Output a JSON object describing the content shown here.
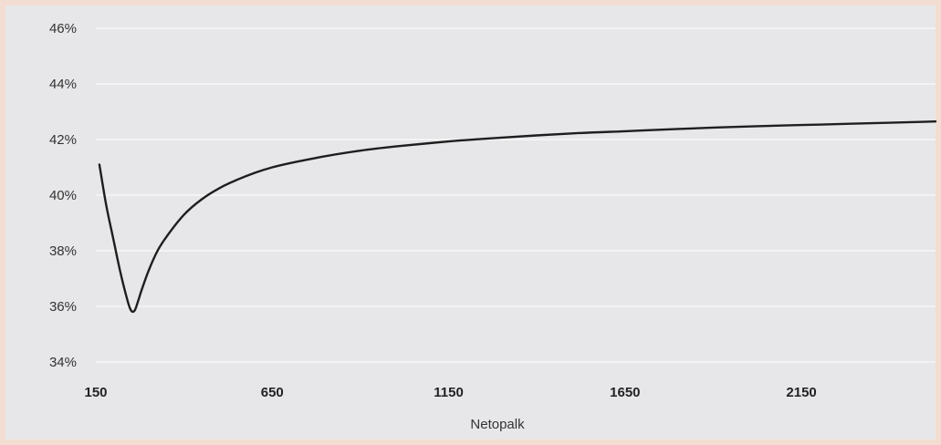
{
  "chart_data": {
    "type": "line",
    "title": "",
    "xlabel": "Netopalk",
    "ylabel": "",
    "x_ticks": [
      "150",
      "650",
      "1150",
      "1650",
      "2150"
    ],
    "y_ticks": [
      "34%",
      "36%",
      "38%",
      "40%",
      "42%",
      "44%",
      "46%"
    ],
    "xlim": [
      150,
      2530
    ],
    "ylim": [
      34,
      46
    ],
    "grid": "horizontal",
    "colors": {
      "background": "#e7e7e9",
      "outer": "#f3ddd2",
      "line": "#1e1e1e",
      "grid": "#ffffff"
    },
    "series": [
      {
        "x": [
          160,
          180,
          200,
          220,
          240,
          250,
          260,
          270,
          280,
          300,
          325,
          350,
          400,
          450,
          500,
          550,
          600,
          650,
          700,
          800,
          900,
          1000,
          1150,
          1300,
          1500,
          1650,
          1800,
          2000,
          2150,
          2300,
          2530
        ],
        "values": [
          41.1,
          39.6,
          38.4,
          37.2,
          36.2,
          35.85,
          35.85,
          36.2,
          36.6,
          37.3,
          38.0,
          38.5,
          39.3,
          39.85,
          40.25,
          40.55,
          40.8,
          41.0,
          41.15,
          41.4,
          41.6,
          41.75,
          41.93,
          42.07,
          42.22,
          42.3,
          42.38,
          42.47,
          42.52,
          42.57,
          42.65
        ]
      }
    ]
  }
}
